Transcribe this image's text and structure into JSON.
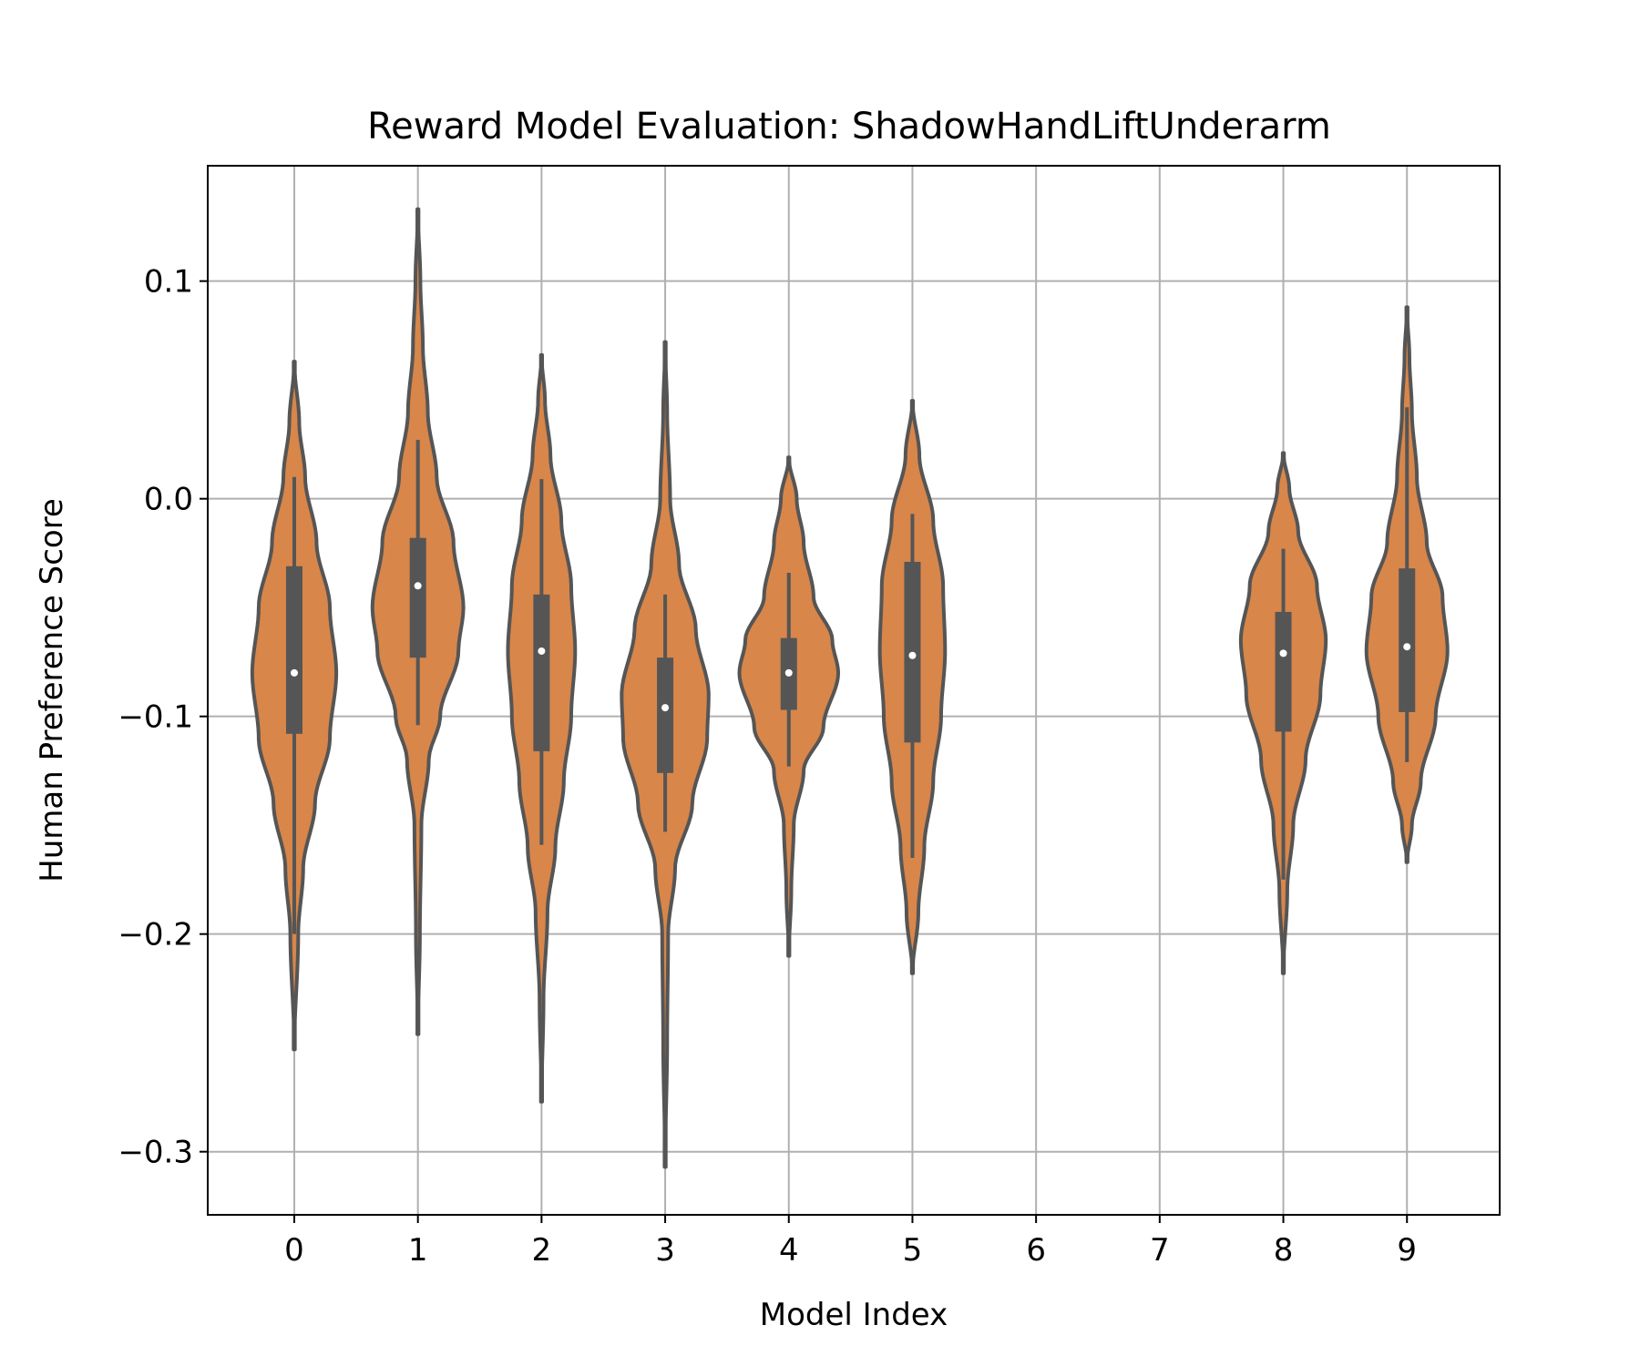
{
  "chart_data": {
    "type": "violin",
    "title": "Reward Model Evaluation: ShadowHandLiftUnderarm",
    "xlabel": "Model Index",
    "ylabel": "Human Preference Score",
    "ylim": [
      -0.329,
      0.153
    ],
    "xlim": [
      -0.7,
      9.75
    ],
    "grid": true,
    "categories": [
      "0",
      "1",
      "2",
      "3",
      "4",
      "5",
      "6",
      "7",
      "8",
      "9"
    ],
    "yticks": [
      {
        "value": 0.1,
        "label": "0.1"
      },
      {
        "value": 0.0,
        "label": "0.0"
      },
      {
        "value": -0.1,
        "label": "−0.1"
      },
      {
        "value": -0.2,
        "label": "−0.2"
      },
      {
        "value": -0.3,
        "label": "−0.3"
      }
    ],
    "colors": {
      "violin_fill": "#d8864a",
      "violin_edge": "#555555",
      "box": "#555555",
      "median": "#ffffff",
      "grid": "#b0b0b0",
      "axes": "#000000"
    },
    "violins": [
      {
        "model": "0",
        "min": -0.253,
        "max": 0.063,
        "q1": -0.108,
        "median": -0.08,
        "q3": -0.031,
        "whisker_low": -0.2,
        "whisker_high": 0.01,
        "profile": [
          [
            -0.253,
            0.0
          ],
          [
            -0.2,
            0.08
          ],
          [
            -0.17,
            0.18
          ],
          [
            -0.14,
            0.42
          ],
          [
            -0.11,
            0.72
          ],
          [
            -0.08,
            0.85
          ],
          [
            -0.05,
            0.72
          ],
          [
            -0.02,
            0.45
          ],
          [
            0.01,
            0.22
          ],
          [
            0.035,
            0.1
          ],
          [
            0.063,
            0.0
          ]
        ]
      },
      {
        "model": "1",
        "min": -0.246,
        "max": 0.133,
        "q1": -0.073,
        "median": -0.04,
        "q3": -0.018,
        "whisker_low": -0.104,
        "whisker_high": 0.027,
        "profile": [
          [
            -0.246,
            0.0
          ],
          [
            -0.2,
            0.04
          ],
          [
            -0.15,
            0.07
          ],
          [
            -0.12,
            0.22
          ],
          [
            -0.1,
            0.45
          ],
          [
            -0.07,
            0.82
          ],
          [
            -0.05,
            0.92
          ],
          [
            -0.02,
            0.72
          ],
          [
            0.01,
            0.38
          ],
          [
            0.04,
            0.2
          ],
          [
            0.07,
            0.1
          ],
          [
            0.1,
            0.05
          ],
          [
            0.133,
            0.0
          ]
        ]
      },
      {
        "model": "2",
        "min": -0.277,
        "max": 0.066,
        "q1": -0.116,
        "median": -0.07,
        "q3": -0.044,
        "whisker_low": -0.159,
        "whisker_high": 0.009,
        "profile": [
          [
            -0.277,
            0.0
          ],
          [
            -0.23,
            0.04
          ],
          [
            -0.19,
            0.12
          ],
          [
            -0.16,
            0.28
          ],
          [
            -0.13,
            0.45
          ],
          [
            -0.1,
            0.6
          ],
          [
            -0.07,
            0.68
          ],
          [
            -0.04,
            0.6
          ],
          [
            -0.01,
            0.4
          ],
          [
            0.02,
            0.18
          ],
          [
            0.045,
            0.07
          ],
          [
            0.066,
            0.0
          ]
        ]
      },
      {
        "model": "3",
        "min": -0.307,
        "max": 0.072,
        "q1": -0.126,
        "median": -0.096,
        "q3": -0.073,
        "whisker_low": -0.153,
        "whisker_high": -0.044,
        "profile": [
          [
            -0.307,
            0.0
          ],
          [
            -0.25,
            0.04
          ],
          [
            -0.2,
            0.06
          ],
          [
            -0.17,
            0.2
          ],
          [
            -0.14,
            0.55
          ],
          [
            -0.11,
            0.85
          ],
          [
            -0.09,
            0.88
          ],
          [
            -0.06,
            0.62
          ],
          [
            -0.03,
            0.28
          ],
          [
            0.0,
            0.1
          ],
          [
            0.04,
            0.04
          ],
          [
            0.072,
            0.0
          ]
        ]
      },
      {
        "model": "4",
        "min": -0.21,
        "max": 0.019,
        "q1": -0.097,
        "median": -0.08,
        "q3": -0.064,
        "whisker_low": -0.123,
        "whisker_high": -0.034,
        "profile": [
          [
            -0.21,
            0.0
          ],
          [
            -0.18,
            0.05
          ],
          [
            -0.15,
            0.1
          ],
          [
            -0.125,
            0.3
          ],
          [
            -0.105,
            0.7
          ],
          [
            -0.08,
            1.0
          ],
          [
            -0.065,
            0.88
          ],
          [
            -0.045,
            0.5
          ],
          [
            -0.02,
            0.3
          ],
          [
            0.0,
            0.16
          ],
          [
            0.019,
            0.0
          ]
        ]
      },
      {
        "model": "5",
        "min": -0.218,
        "max": 0.045,
        "q1": -0.112,
        "median": -0.072,
        "q3": -0.029,
        "whisker_low": -0.165,
        "whisker_high": -0.007,
        "profile": [
          [
            -0.218,
            0.0
          ],
          [
            -0.19,
            0.12
          ],
          [
            -0.16,
            0.24
          ],
          [
            -0.13,
            0.42
          ],
          [
            -0.1,
            0.58
          ],
          [
            -0.07,
            0.66
          ],
          [
            -0.04,
            0.62
          ],
          [
            -0.01,
            0.42
          ],
          [
            0.02,
            0.14
          ],
          [
            0.045,
            0.0
          ]
        ]
      },
      {
        "model": "8",
        "min": -0.218,
        "max": 0.021,
        "q1": -0.107,
        "median": -0.071,
        "q3": -0.052,
        "whisker_low": -0.175,
        "whisker_high": -0.023,
        "profile": [
          [
            -0.218,
            0.0
          ],
          [
            -0.18,
            0.08
          ],
          [
            -0.15,
            0.2
          ],
          [
            -0.12,
            0.45
          ],
          [
            -0.09,
            0.75
          ],
          [
            -0.065,
            0.86
          ],
          [
            -0.04,
            0.68
          ],
          [
            -0.015,
            0.3
          ],
          [
            0.005,
            0.12
          ],
          [
            0.021,
            0.0
          ]
        ]
      },
      {
        "model": "9",
        "min": -0.167,
        "max": 0.088,
        "q1": -0.098,
        "median": -0.068,
        "q3": -0.032,
        "whisker_low": -0.121,
        "whisker_high": 0.042,
        "profile": [
          [
            -0.167,
            0.0
          ],
          [
            -0.15,
            0.1
          ],
          [
            -0.13,
            0.28
          ],
          [
            -0.1,
            0.58
          ],
          [
            -0.07,
            0.82
          ],
          [
            -0.045,
            0.72
          ],
          [
            -0.02,
            0.4
          ],
          [
            0.01,
            0.2
          ],
          [
            0.04,
            0.1
          ],
          [
            0.065,
            0.05
          ],
          [
            0.088,
            0.0
          ]
        ]
      }
    ]
  }
}
